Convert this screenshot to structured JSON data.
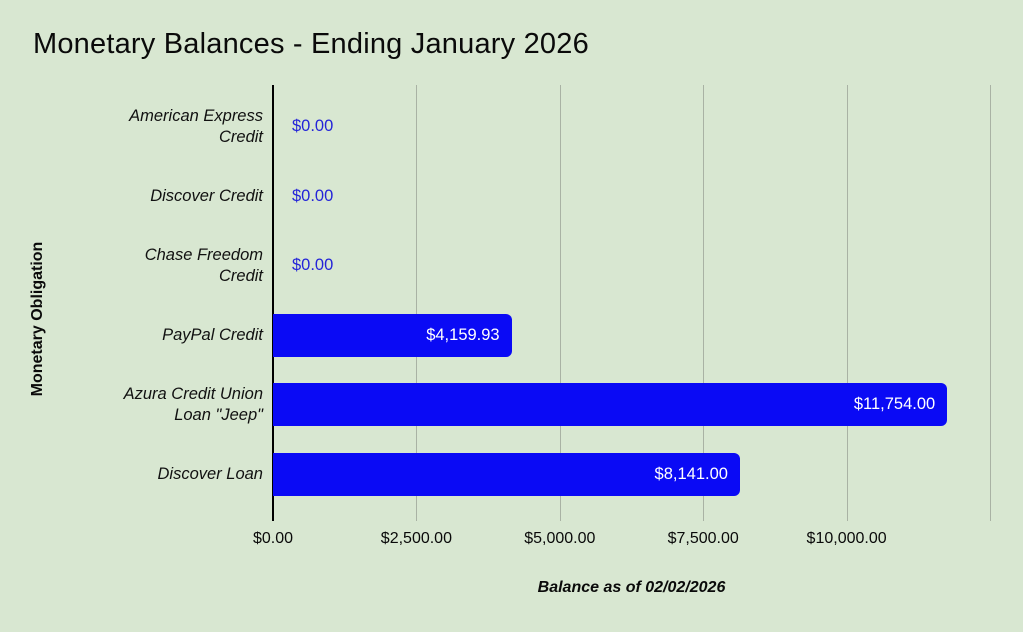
{
  "window": {
    "background": "#d8e7d1"
  },
  "chart_data": {
    "type": "bar",
    "orientation": "horizontal",
    "title": "Monetary Balances - Ending January 2026",
    "xlabel": "Balance as of 02/02/2026",
    "ylabel": "Monetary Obligation",
    "xlim": [
      0,
      12500
    ],
    "grid": true,
    "legend": "none",
    "categories": [
      "American Express\nCredit",
      "Discover Credit",
      "Chase Freedom\nCredit",
      "PayPal Credit",
      "Azura Credit Union\nLoan \"Jeep\"",
      "Discover Loan"
    ],
    "values": [
      0,
      0,
      0,
      4159.93,
      11754,
      8141
    ],
    "value_labels": [
      "$0.00",
      "$0.00",
      "$0.00",
      "$4,159.93",
      "$11,754.00",
      "$8,141.00"
    ],
    "xticks": [
      {
        "value": 0,
        "label": "$0.00"
      },
      {
        "value": 2500,
        "label": "$2,500.00"
      },
      {
        "value": 5000,
        "label": "$5,000.00"
      },
      {
        "value": 7500,
        "label": "$7,500.00"
      },
      {
        "value": 10000,
        "label": "$10,000.00"
      },
      {
        "value": 12500,
        "label": ""
      }
    ],
    "colors": {
      "bar": "#0a0af5",
      "value_label_inside": "#ffffff",
      "value_label_outside": "#2424d8",
      "gridline": "#a9b2a4",
      "axis_line": "#000000",
      "text": "#0a0a0a",
      "background": "#d8e7d1"
    }
  }
}
